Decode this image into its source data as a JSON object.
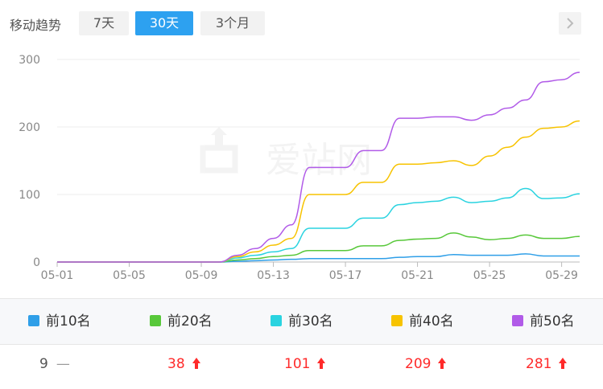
{
  "header": {
    "title": "移动趋势",
    "tabs": [
      {
        "label": "7天",
        "active": false
      },
      {
        "label": "30天",
        "active": true
      },
      {
        "label": "3个月",
        "active": false
      }
    ],
    "next_icon": "chevron-right-icon"
  },
  "watermark": {
    "text": "爱站网"
  },
  "chart_data": {
    "type": "line",
    "x": [
      "05-01",
      "05-02",
      "05-03",
      "05-04",
      "05-05",
      "05-06",
      "05-07",
      "05-08",
      "05-09",
      "05-10",
      "05-11",
      "05-12",
      "05-13",
      "05-14",
      "05-15",
      "05-16",
      "05-17",
      "05-18",
      "05-19",
      "05-20",
      "05-21",
      "05-22",
      "05-23",
      "05-24",
      "05-25",
      "05-26",
      "05-27",
      "05-28",
      "05-29",
      "05-30"
    ],
    "x_tick_labels": [
      "05-01",
      "05-05",
      "05-09",
      "05-13",
      "05-17",
      "05-21",
      "05-25",
      "05-29"
    ],
    "y_ticks": [
      0,
      100,
      200,
      300
    ],
    "ylim": [
      0,
      300
    ],
    "grid": true,
    "series": [
      {
        "name": "前10名",
        "color": "#2f9fe8",
        "values": [
          0,
          0,
          0,
          0,
          0,
          0,
          0,
          0,
          0,
          0,
          1,
          2,
          3,
          4,
          5,
          5,
          5,
          5,
          5,
          7,
          8,
          8,
          11,
          10,
          10,
          10,
          12,
          9,
          9,
          9
        ]
      },
      {
        "name": "前20名",
        "color": "#58c83a",
        "values": [
          0,
          0,
          0,
          0,
          0,
          0,
          0,
          0,
          0,
          0,
          3,
          5,
          8,
          10,
          17,
          17,
          17,
          24,
          24,
          32,
          34,
          35,
          43,
          37,
          33,
          35,
          40,
          35,
          35,
          38
        ]
      },
      {
        "name": "前30名",
        "color": "#2ad3e0",
        "values": [
          0,
          0,
          0,
          0,
          0,
          0,
          0,
          0,
          0,
          0,
          6,
          10,
          15,
          20,
          50,
          50,
          50,
          65,
          65,
          85,
          88,
          90,
          96,
          88,
          90,
          95,
          109,
          94,
          95,
          101
        ]
      },
      {
        "name": "前40名",
        "color": "#f7c300",
        "values": [
          0,
          0,
          0,
          0,
          0,
          0,
          0,
          0,
          0,
          0,
          8,
          15,
          25,
          35,
          100,
          100,
          100,
          118,
          118,
          145,
          145,
          147,
          150,
          143,
          157,
          170,
          185,
          198,
          200,
          209
        ]
      },
      {
        "name": "前50名",
        "color": "#b15be8",
        "values": [
          0,
          0,
          0,
          0,
          0,
          0,
          0,
          0,
          0,
          0,
          10,
          20,
          35,
          55,
          140,
          140,
          140,
          165,
          165,
          213,
          213,
          215,
          215,
          210,
          218,
          228,
          240,
          267,
          270,
          281
        ]
      }
    ]
  },
  "legend": [
    {
      "label": "前10名",
      "color": "#2f9fe8"
    },
    {
      "label": "前20名",
      "color": "#58c83a"
    },
    {
      "label": "前30名",
      "color": "#2ad3e0"
    },
    {
      "label": "前40名",
      "color": "#f7c300"
    },
    {
      "label": "前50名",
      "color": "#b15be8"
    }
  ],
  "values_row": [
    {
      "value": "9",
      "trend": "flat",
      "trend_symbol": "—"
    },
    {
      "value": "38",
      "trend": "up",
      "trend_icon": "arrow-up-icon"
    },
    {
      "value": "101",
      "trend": "up",
      "trend_icon": "arrow-up-icon"
    },
    {
      "value": "209",
      "trend": "up",
      "trend_icon": "arrow-up-icon"
    },
    {
      "value": "281",
      "trend": "up",
      "trend_icon": "arrow-up-icon"
    }
  ]
}
